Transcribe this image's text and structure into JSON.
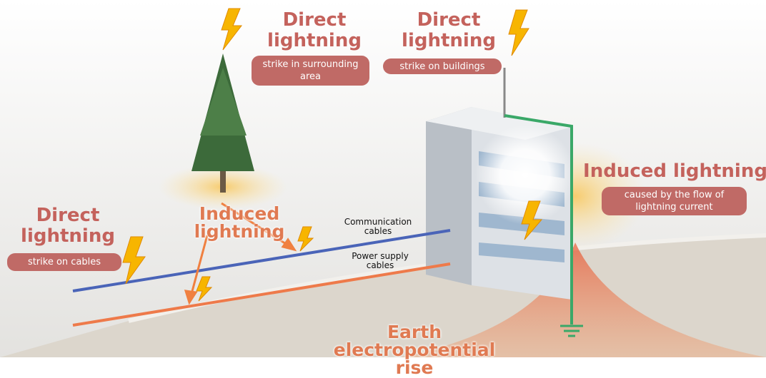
{
  "labels": [
    {
      "title": "Direct lightning",
      "caption": "strike in surrounding area"
    },
    {
      "title": "Direct lightning",
      "caption": "strike on buildings"
    },
    {
      "title": "Induced lightning",
      "caption": "caused by the flow of lightning current"
    },
    {
      "title": "Direct lightning",
      "caption": "strike on cables"
    }
  ],
  "tree_label": "Induced lightning",
  "cables": [
    "Communication cables",
    "Power supply cables"
  ],
  "earth_label": "Earth electropotential rise"
}
